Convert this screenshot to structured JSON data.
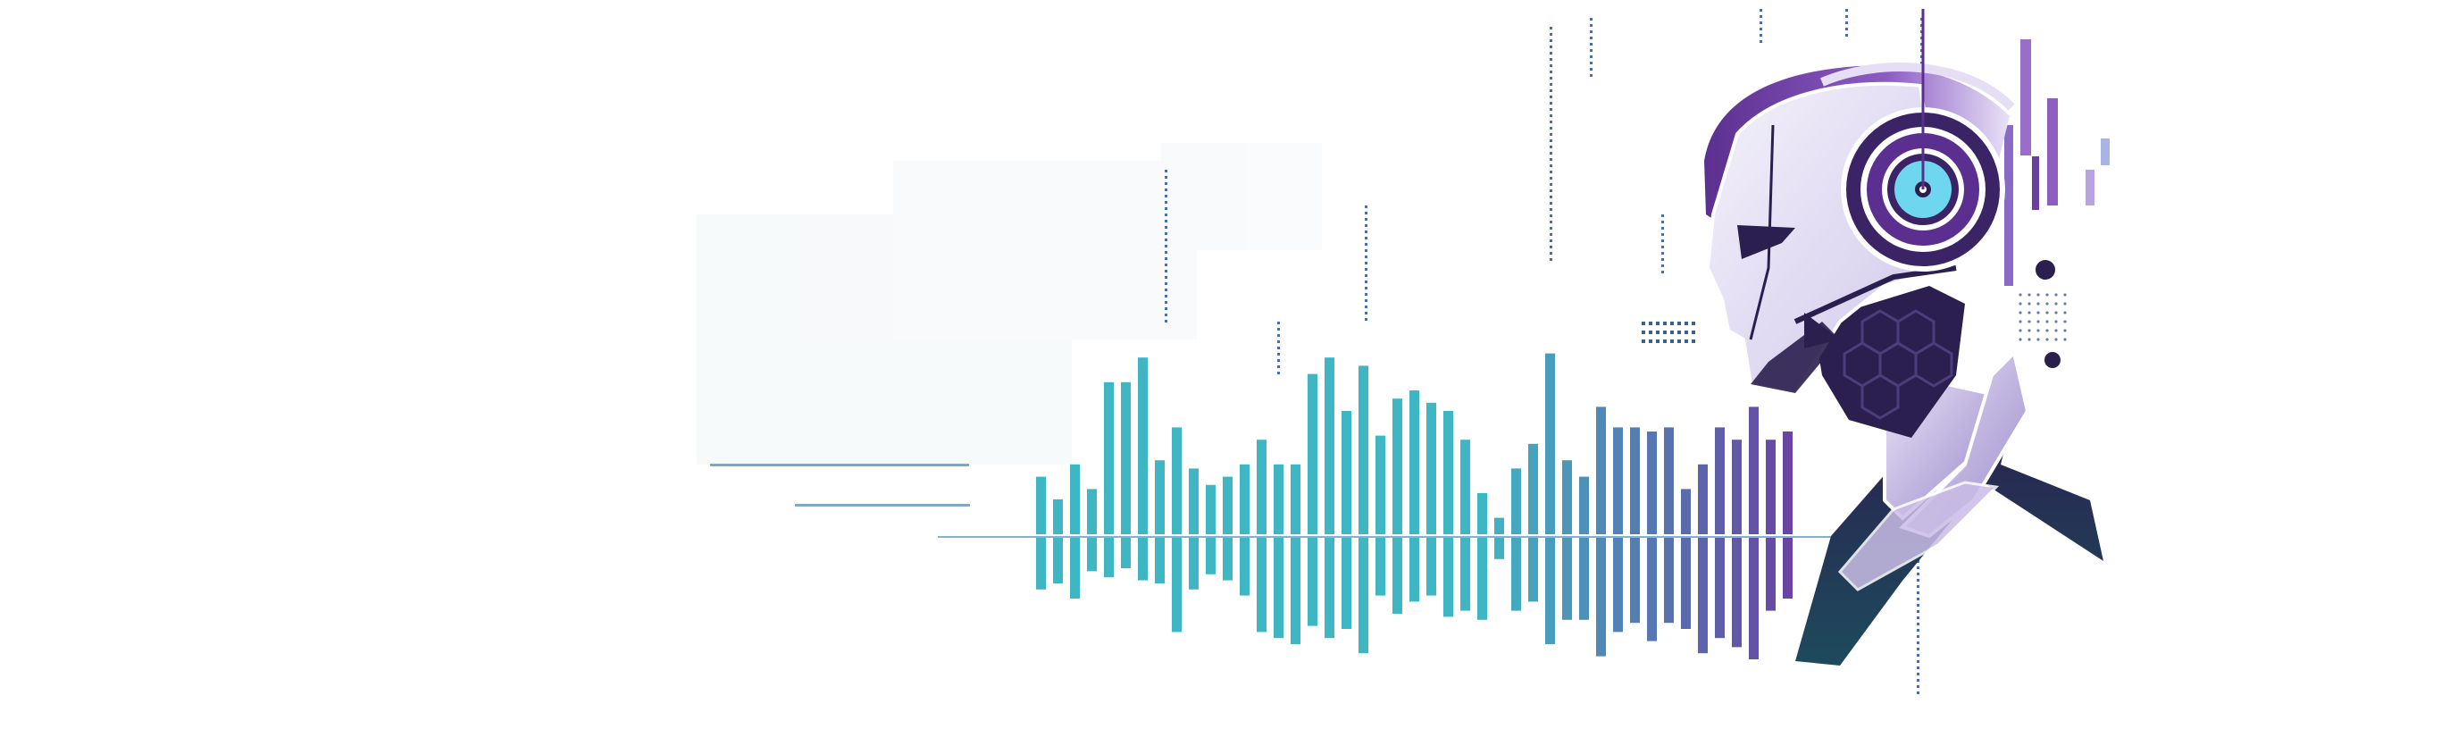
{
  "illustration": {
    "subject": "robot-head-with-headphones-sound-waveform",
    "colors": {
      "teal": "#3fb6c3",
      "teal_dark": "#1f8a9a",
      "purple": "#6a3fa0",
      "purple_light": "#b9a4e0",
      "navy": "#2a1f4e",
      "lavender": "#e8e2f6",
      "cyan_eye": "#6fd6ef",
      "faint": "#eef3f7"
    }
  },
  "waveform": {
    "bars_top": [
      0.28,
      0.17,
      0.34,
      0.22,
      0.74,
      0.74,
      0.86,
      0.36,
      0.52,
      0.32,
      0.24,
      0.28,
      0.34,
      0.46,
      0.34,
      0.34,
      0.78,
      0.86,
      0.6,
      0.82,
      0.48,
      0.66,
      0.7,
      0.64,
      0.6,
      0.46,
      0.2,
      0.08,
      0.32,
      0.44,
      0.88,
      0.36,
      0.28,
      0.62,
      0.52,
      0.52,
      0.5,
      0.52,
      0.22,
      0.34,
      0.52,
      0.46,
      0.62,
      0.46,
      0.5
    ],
    "bars_bottom": [
      0.34,
      0.3,
      0.4,
      0.22,
      0.26,
      0.2,
      0.28,
      0.3,
      0.62,
      0.34,
      0.24,
      0.28,
      0.38,
      0.62,
      0.66,
      0.7,
      0.58,
      0.66,
      0.6,
      0.76,
      0.38,
      0.5,
      0.42,
      0.38,
      0.52,
      0.48,
      0.54,
      0.14,
      0.48,
      0.42,
      0.7,
      0.54,
      0.54,
      0.78,
      0.62,
      0.56,
      0.68,
      0.56,
      0.6,
      0.76,
      0.66,
      0.72,
      0.8,
      0.48,
      0.4
    ]
  }
}
